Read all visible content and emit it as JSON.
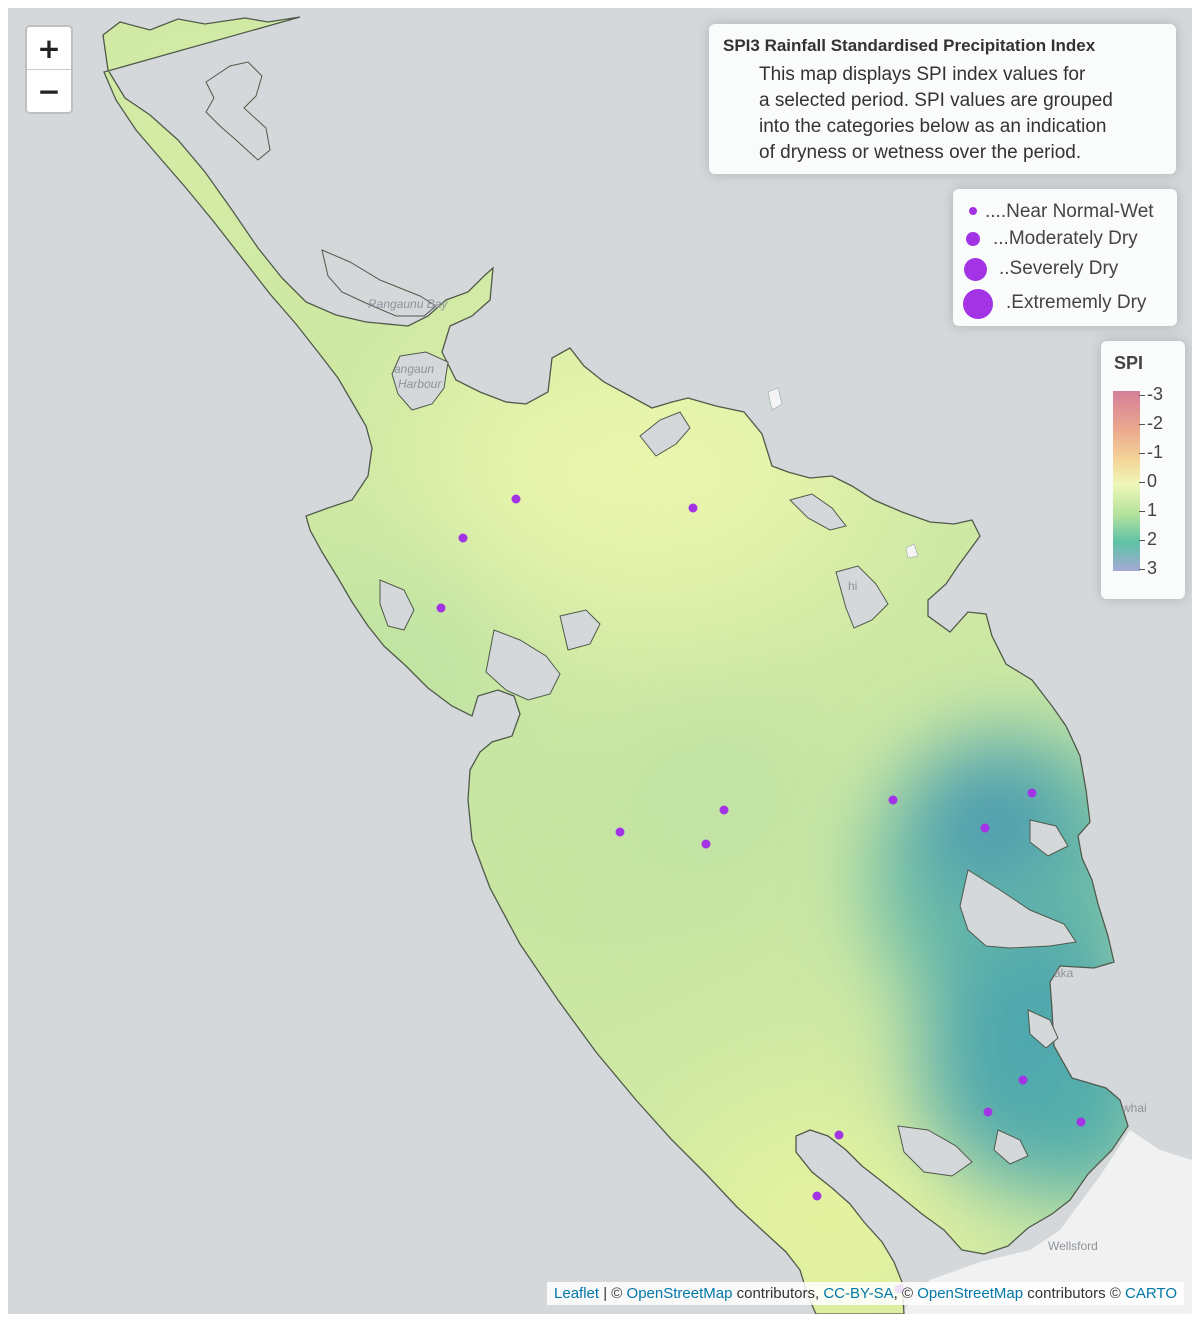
{
  "zoom": {
    "in_label": "+",
    "out_label": "−"
  },
  "info": {
    "title": "SPI3 Rainfall Standardised Precipitation Index",
    "lines": [
      "This map displays SPI index values for",
      "a selected period. SPI values are grouped",
      "into the categories below as an indication",
      "of dryness or wetness over the period."
    ]
  },
  "size_legend": {
    "items": [
      {
        "label": "....Near Normal-Wet"
      },
      {
        "label": "...Moderately Dry"
      },
      {
        "label": "..Severely Dry"
      },
      {
        "label": ".Extrememly Dry"
      }
    ],
    "color": "#a234e6"
  },
  "spi_legend": {
    "title": "SPI",
    "labels": [
      "-3",
      "-2",
      "-1",
      "0",
      "1",
      "2",
      "3"
    ]
  },
  "places": {
    "bay": "Rangaunu Bay",
    "harbour_1": "angaun",
    "harbour_2": "Harbour",
    "town_1": "aka",
    "town_2": "whai",
    "town_3": "Wellsford",
    "inlet": "hi"
  },
  "attribution": {
    "leaflet": "Leaflet",
    "sep1": " | © ",
    "osm1": "OpenStreetMap",
    "contributors1": " contributors, ",
    "ccbysa": "CC-BY-SA",
    "sep2": ", © ",
    "osm2": "OpenStreetMap",
    "contributors2": " contributors © ",
    "carto": "CARTO"
  },
  "colors": {
    "ocean": "#d4d8db",
    "land_gray": "#f1f1f1",
    "marker": "#a234e6",
    "link": "#0078a8"
  }
}
